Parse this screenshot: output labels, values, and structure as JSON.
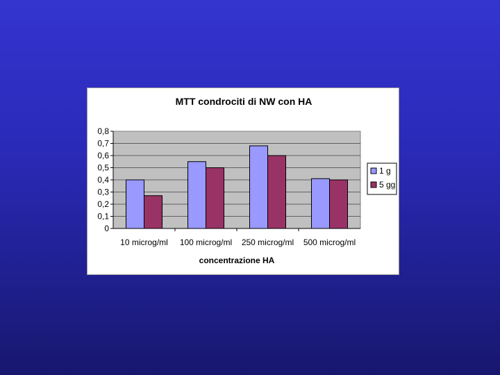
{
  "colors": {
    "background_top": "#3434d0",
    "background_bottom": "#17176e",
    "plot_area": "#c0c0c0",
    "series_1": "#9999ff",
    "series_2": "#993366"
  },
  "chart_data": {
    "type": "bar",
    "title": "MTT condrociti di NW con HA",
    "xlabel": "concentrazione HA",
    "ylabel": "",
    "categories": [
      "10 microg/ml",
      "100 microg/ml",
      "250 microg/ml",
      "500 microg/ml"
    ],
    "series": [
      {
        "name": "1 g",
        "values": [
          0.4,
          0.55,
          0.68,
          0.41
        ]
      },
      {
        "name": "5 gg",
        "values": [
          0.27,
          0.5,
          0.6,
          0.4
        ]
      }
    ],
    "ylim": [
      0,
      0.8
    ],
    "yticks": [
      "0",
      "0,1",
      "0,2",
      "0,3",
      "0,4",
      "0,5",
      "0,6",
      "0,7",
      "0,8"
    ],
    "grid": true,
    "legend_position": "right"
  }
}
